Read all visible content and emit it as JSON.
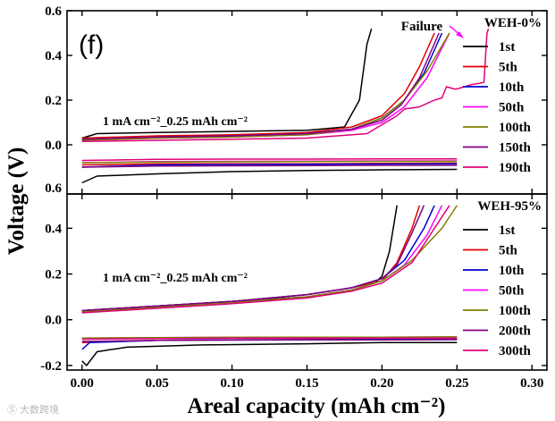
{
  "chart_data": [
    {
      "type": "line",
      "panel_label": "(f)",
      "title": "WEH-0%",
      "annotation": "1 mA cm⁻²_0.25 mAh cm⁻²",
      "failure_label": "Failure",
      "xlim": [
        -0.01,
        0.31
      ],
      "ylim": [
        -0.22,
        0.6
      ],
      "ytick_values": [
        0.0,
        0.2,
        0.4,
        0.6
      ],
      "ytick_labels": [
        "0.0",
        "0.2",
        "0.4",
        "0.6"
      ],
      "bottom_tick_label": "0.6",
      "series": [
        {
          "name": "1st",
          "color": "#000000",
          "charge": [
            [
              0.0,
              0.03
            ],
            [
              0.01,
              0.05
            ],
            [
              0.05,
              0.055
            ],
            [
              0.1,
              0.06
            ],
            [
              0.15,
              0.065
            ],
            [
              0.175,
              0.08
            ],
            [
              0.185,
              0.2
            ],
            [
              0.19,
              0.45
            ],
            [
              0.193,
              0.52
            ]
          ],
          "discharge": [
            [
              0.0,
              -0.17
            ],
            [
              0.01,
              -0.14
            ],
            [
              0.05,
              -0.13
            ],
            [
              0.1,
              -0.12
            ],
            [
              0.15,
              -0.115
            ],
            [
              0.2,
              -0.112
            ],
            [
              0.25,
              -0.11
            ]
          ]
        },
        {
          "name": "5th",
          "color": "#e00000",
          "charge": [
            [
              0.0,
              0.03
            ],
            [
              0.05,
              0.04
            ],
            [
              0.1,
              0.045
            ],
            [
              0.15,
              0.055
            ],
            [
              0.18,
              0.08
            ],
            [
              0.2,
              0.13
            ],
            [
              0.215,
              0.23
            ],
            [
              0.225,
              0.35
            ],
            [
              0.235,
              0.5
            ]
          ],
          "discharge": [
            [
              0.0,
              -0.09
            ],
            [
              0.05,
              -0.085
            ],
            [
              0.1,
              -0.085
            ],
            [
              0.15,
              -0.085
            ],
            [
              0.2,
              -0.083
            ],
            [
              0.25,
              -0.082
            ]
          ]
        },
        {
          "name": "10th",
          "color": "#0000d0",
          "charge": [
            [
              0.0,
              0.02
            ],
            [
              0.05,
              0.035
            ],
            [
              0.1,
              0.04
            ],
            [
              0.15,
              0.05
            ],
            [
              0.18,
              0.07
            ],
            [
              0.2,
              0.12
            ],
            [
              0.215,
              0.2
            ],
            [
              0.228,
              0.32
            ],
            [
              0.24,
              0.5
            ]
          ],
          "discharge": [
            [
              0.0,
              -0.1
            ],
            [
              0.05,
              -0.09
            ],
            [
              0.1,
              -0.088
            ],
            [
              0.15,
              -0.087
            ],
            [
              0.2,
              -0.086
            ],
            [
              0.25,
              -0.085
            ]
          ]
        },
        {
          "name": "50th",
          "color": "#ff00ff",
          "charge": [
            [
              0.0,
              0.02
            ],
            [
              0.05,
              0.03
            ],
            [
              0.1,
              0.035
            ],
            [
              0.15,
              0.045
            ],
            [
              0.18,
              0.065
            ],
            [
              0.2,
              0.1
            ],
            [
              0.215,
              0.17
            ],
            [
              0.23,
              0.3
            ],
            [
              0.245,
              0.5
            ]
          ],
          "discharge": [
            [
              0.0,
              -0.08
            ],
            [
              0.05,
              -0.075
            ],
            [
              0.1,
              -0.074
            ],
            [
              0.15,
              -0.073
            ],
            [
              0.2,
              -0.072
            ],
            [
              0.25,
              -0.072
            ]
          ]
        },
        {
          "name": "100th",
          "color": "#808000",
          "charge": [
            [
              0.0,
              0.02
            ],
            [
              0.05,
              0.03
            ],
            [
              0.1,
              0.035
            ],
            [
              0.15,
              0.045
            ],
            [
              0.18,
              0.07
            ],
            [
              0.2,
              0.12
            ],
            [
              0.215,
              0.2
            ],
            [
              0.23,
              0.33
            ],
            [
              0.245,
              0.5
            ]
          ],
          "discharge": [
            [
              0.0,
              -0.08
            ],
            [
              0.05,
              -0.077
            ],
            [
              0.1,
              -0.076
            ],
            [
              0.15,
              -0.075
            ],
            [
              0.2,
              -0.074
            ],
            [
              0.25,
              -0.074
            ]
          ]
        },
        {
          "name": "150th",
          "color": "#800080",
          "charge": [
            [
              0.0,
              0.025
            ],
            [
              0.05,
              0.035
            ],
            [
              0.1,
              0.04
            ],
            [
              0.15,
              0.05
            ],
            [
              0.18,
              0.07
            ],
            [
              0.2,
              0.11
            ],
            [
              0.213,
              0.18
            ],
            [
              0.225,
              0.3
            ],
            [
              0.238,
              0.5
            ]
          ],
          "discharge": [
            [
              0.0,
              -0.1
            ],
            [
              0.05,
              -0.095
            ],
            [
              0.1,
              -0.094
            ],
            [
              0.15,
              -0.093
            ],
            [
              0.2,
              -0.092
            ],
            [
              0.25,
              -0.092
            ]
          ]
        },
        {
          "name": "190th",
          "color": "#e0007a",
          "charge": [
            [
              0.0,
              0.015
            ],
            [
              0.05,
              0.02
            ],
            [
              0.1,
              0.025
            ],
            [
              0.15,
              0.03
            ],
            [
              0.19,
              0.05
            ],
            [
              0.21,
              0.13
            ],
            [
              0.215,
              0.16
            ],
            [
              0.225,
              0.17
            ],
            [
              0.23,
              0.185
            ],
            [
              0.235,
              0.2
            ],
            [
              0.24,
              0.21
            ],
            [
              0.243,
              0.26
            ],
            [
              0.248,
              0.25
            ],
            [
              0.25,
              0.25
            ],
            [
              0.255,
              0.26
            ],
            [
              0.26,
              0.27
            ],
            [
              0.265,
              0.275
            ],
            [
              0.268,
              0.28
            ],
            [
              0.27,
              0.5
            ],
            [
              0.271,
              0.52
            ]
          ],
          "discharge": [
            [
              0.0,
              -0.07
            ],
            [
              0.05,
              -0.065
            ],
            [
              0.1,
              -0.064
            ],
            [
              0.15,
              -0.064
            ],
            [
              0.2,
              -0.063
            ],
            [
              0.25,
              -0.063
            ]
          ]
        }
      ]
    },
    {
      "type": "line",
      "title": "WEH-95%",
      "annotation": "1 mA cm⁻²_0.25 mAh cm⁻²",
      "xlabel": "Areal capacity (mAh cm⁻²)",
      "ylabel": "Voltage (V)",
      "xlim": [
        -0.01,
        0.31
      ],
      "ylim": [
        -0.22,
        0.55
      ],
      "xtick_values": [
        0.0,
        0.05,
        0.1,
        0.15,
        0.2,
        0.25,
        0.3
      ],
      "xtick_labels": [
        "0.00",
        "0.05",
        "0.10",
        "0.15",
        "0.20",
        "0.25",
        "0.30"
      ],
      "ytick_values": [
        -0.2,
        0.0,
        0.2,
        0.4
      ],
      "ytick_labels": [
        "-0.2",
        "0.0",
        "0.2",
        "0.4"
      ],
      "series": [
        {
          "name": "1st",
          "color": "#000000",
          "charge": [
            [
              0.0,
              0.04
            ],
            [
              0.05,
              0.06
            ],
            [
              0.1,
              0.08
            ],
            [
              0.15,
              0.1
            ],
            [
              0.18,
              0.13
            ],
            [
              0.195,
              0.16
            ],
            [
              0.2,
              0.19
            ],
            [
              0.205,
              0.3
            ],
            [
              0.21,
              0.5
            ]
          ],
          "discharge": [
            [
              0.0,
              -0.18
            ],
            [
              0.003,
              -0.2
            ],
            [
              0.01,
              -0.14
            ],
            [
              0.03,
              -0.12
            ],
            [
              0.08,
              -0.11
            ],
            [
              0.15,
              -0.105
            ],
            [
              0.2,
              -0.1
            ],
            [
              0.25,
              -0.1
            ]
          ]
        },
        {
          "name": "5th",
          "color": "#e00000",
          "charge": [
            [
              0.0,
              0.04
            ],
            [
              0.05,
              0.06
            ],
            [
              0.1,
              0.08
            ],
            [
              0.15,
              0.11
            ],
            [
              0.18,
              0.14
            ],
            [
              0.2,
              0.17
            ],
            [
              0.21,
              0.25
            ],
            [
              0.22,
              0.4
            ],
            [
              0.225,
              0.5
            ]
          ],
          "discharge": [
            [
              0.0,
              -0.1
            ],
            [
              0.05,
              -0.09
            ],
            [
              0.1,
              -0.088
            ],
            [
              0.15,
              -0.087
            ],
            [
              0.2,
              -0.086
            ],
            [
              0.25,
              -0.085
            ]
          ]
        },
        {
          "name": "10th",
          "color": "#0000d0",
          "charge": [
            [
              0.0,
              0.04
            ],
            [
              0.05,
              0.06
            ],
            [
              0.1,
              0.08
            ],
            [
              0.15,
              0.11
            ],
            [
              0.18,
              0.14
            ],
            [
              0.2,
              0.18
            ],
            [
              0.215,
              0.26
            ],
            [
              0.228,
              0.4
            ],
            [
              0.235,
              0.5
            ]
          ],
          "discharge": [
            [
              0.0,
              -0.13
            ],
            [
              0.005,
              -0.1
            ],
            [
              0.05,
              -0.09
            ],
            [
              0.1,
              -0.088
            ],
            [
              0.15,
              -0.087
            ],
            [
              0.2,
              -0.086
            ],
            [
              0.25,
              -0.086
            ]
          ]
        },
        {
          "name": "50th",
          "color": "#ff00ff",
          "charge": [
            [
              0.0,
              0.035
            ],
            [
              0.05,
              0.055
            ],
            [
              0.1,
              0.075
            ],
            [
              0.15,
              0.1
            ],
            [
              0.18,
              0.13
            ],
            [
              0.2,
              0.17
            ],
            [
              0.215,
              0.24
            ],
            [
              0.23,
              0.37
            ],
            [
              0.24,
              0.5
            ]
          ],
          "discharge": [
            [
              0.0,
              -0.08
            ],
            [
              0.05,
              -0.078
            ],
            [
              0.1,
              -0.077
            ],
            [
              0.15,
              -0.076
            ],
            [
              0.2,
              -0.076
            ],
            [
              0.25,
              -0.075
            ]
          ]
        },
        {
          "name": "100th",
          "color": "#808000",
          "charge": [
            [
              0.0,
              0.035
            ],
            [
              0.05,
              0.055
            ],
            [
              0.1,
              0.075
            ],
            [
              0.15,
              0.1
            ],
            [
              0.18,
              0.13
            ],
            [
              0.2,
              0.17
            ],
            [
              0.22,
              0.26
            ],
            [
              0.24,
              0.4
            ],
            [
              0.25,
              0.5
            ]
          ],
          "discharge": [
            [
              0.0,
              -0.08
            ],
            [
              0.05,
              -0.078
            ],
            [
              0.1,
              -0.077
            ],
            [
              0.15,
              -0.076
            ],
            [
              0.2,
              -0.076
            ],
            [
              0.25,
              -0.075
            ]
          ]
        },
        {
          "name": "200th",
          "color": "#800080",
          "charge": [
            [
              0.0,
              0.04
            ],
            [
              0.05,
              0.06
            ],
            [
              0.1,
              0.08
            ],
            [
              0.15,
              0.11
            ],
            [
              0.18,
              0.14
            ],
            [
              0.2,
              0.18
            ],
            [
              0.21,
              0.24
            ],
            [
              0.22,
              0.38
            ],
            [
              0.228,
              0.5
            ]
          ],
          "discharge": [
            [
              0.0,
              -0.095
            ],
            [
              0.05,
              -0.09
            ],
            [
              0.1,
              -0.089
            ],
            [
              0.15,
              -0.088
            ],
            [
              0.2,
              -0.088
            ],
            [
              0.25,
              -0.087
            ]
          ]
        },
        {
          "name": "300th",
          "color": "#e0007a",
          "charge": [
            [
              0.0,
              0.03
            ],
            [
              0.05,
              0.05
            ],
            [
              0.1,
              0.07
            ],
            [
              0.15,
              0.095
            ],
            [
              0.18,
              0.125
            ],
            [
              0.2,
              0.16
            ],
            [
              0.22,
              0.25
            ],
            [
              0.235,
              0.4
            ],
            [
              0.245,
              0.5
            ]
          ],
          "discharge": [
            [
              0.0,
              -0.085
            ],
            [
              0.05,
              -0.082
            ],
            [
              0.1,
              -0.081
            ],
            [
              0.15,
              -0.08
            ],
            [
              0.2,
              -0.08
            ],
            [
              0.25,
              -0.08
            ]
          ]
        }
      ]
    }
  ],
  "watermark": "Ⓢ 大数跨境"
}
